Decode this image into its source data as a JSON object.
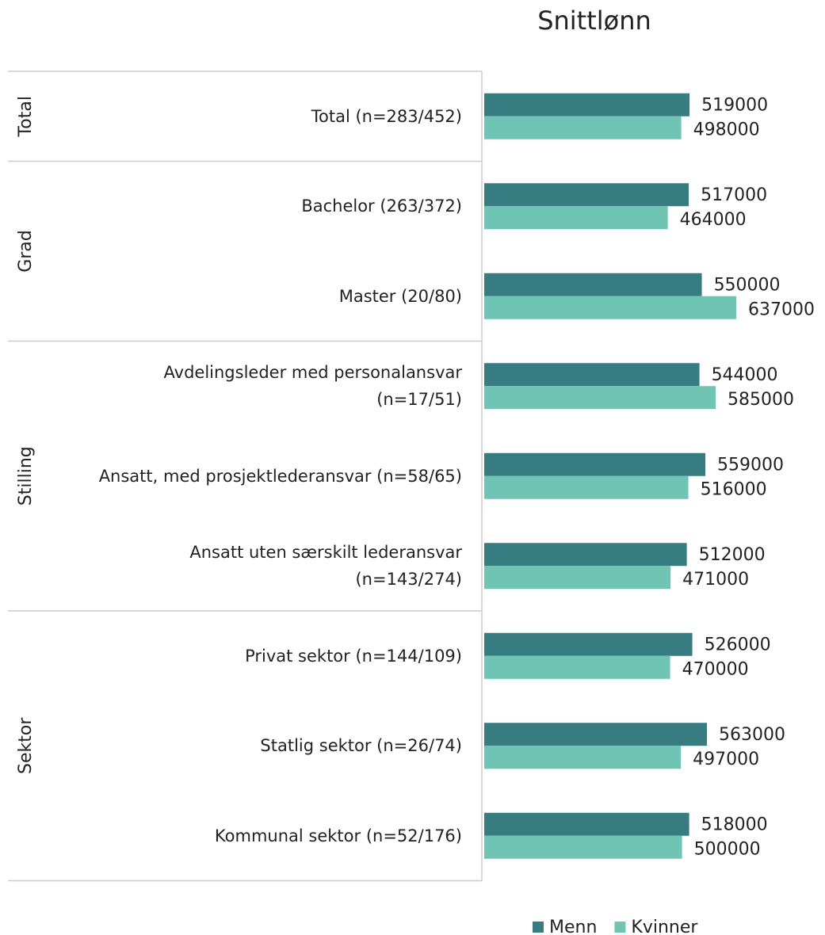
{
  "chart_data": {
    "type": "grouped-hbar",
    "title": "Snittlønn",
    "groups": [
      {
        "name": "Total",
        "categories": [
          "Total (n=283/452)"
        ]
      },
      {
        "name": "Grad",
        "categories": [
          "Bachelor (263/372)",
          "Master (20/80)"
        ]
      },
      {
        "name": "Stilling",
        "categories": [
          "Avdelingsleder med personalansvar\n(n=17/51)",
          "Ansatt, med prosjektlederansvar (n=58/65)",
          "Ansatt uten særskilt lederansvar\n(n=143/274)"
        ]
      },
      {
        "name": "Sektor",
        "categories": [
          "Privat sektor (n=144/109)",
          "Statlig sektor (n=26/74)",
          "Kommunal sektor (n=52/176)"
        ]
      }
    ],
    "series": [
      {
        "name": "Menn",
        "color": "#367c80",
        "values": [
          519000,
          517000,
          550000,
          544000,
          559000,
          512000,
          526000,
          563000,
          518000
        ]
      },
      {
        "name": "Kvinner",
        "color": "#70c4b4",
        "values": [
          498000,
          464000,
          637000,
          585000,
          516000,
          471000,
          470000,
          497000,
          500000
        ]
      }
    ],
    "legend": "bottom"
  }
}
